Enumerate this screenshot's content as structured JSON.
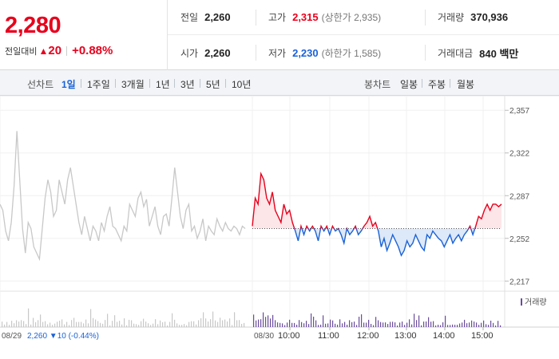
{
  "header": {
    "current_price": "2,280",
    "change_label": "전일대비",
    "change_arrow": "▲",
    "change_value": "20",
    "change_pct": "+0.88%",
    "prev_close": {
      "label": "전일",
      "value": "2,260"
    },
    "open": {
      "label": "시가",
      "value": "2,260"
    },
    "high": {
      "label": "고가",
      "value": "2,315",
      "limit": "(상한가 2,935)"
    },
    "low": {
      "label": "저가",
      "value": "2,230",
      "limit": "(하한가 1,585)"
    },
    "volume": {
      "label": "거래량",
      "value": "370,936"
    },
    "amount": {
      "label": "거래대금",
      "value": "840 백만"
    }
  },
  "tabs": {
    "line_label": "선차트",
    "line_tabs": [
      "1일",
      "1주일",
      "3개월",
      "1년",
      "3년",
      "5년",
      "10년"
    ],
    "selected": "1일",
    "candle_label": "봉차트",
    "candle_tabs": [
      "일봉",
      "주봉",
      "월봉"
    ]
  },
  "colors": {
    "up": "#e8001c",
    "down": "#1a62d6",
    "prev_day": "#c8c8c8",
    "volume": "#6a4c9c"
  },
  "chart_data": {
    "type": "line",
    "ylim": [
      2210,
      2365
    ],
    "y_ticks": [
      "2,357",
      "2,322",
      "2,287",
      "2,252",
      "2,217"
    ],
    "baseline": 2260,
    "prev_day": {
      "date": "08/29",
      "summary": {
        "price": "2,260",
        "arrow": "▼",
        "change": "10",
        "pct": "(-0.44%)"
      },
      "values": [
        2280,
        2275,
        2258,
        2250,
        2265,
        2295,
        2340,
        2300,
        2260,
        2240,
        2265,
        2260,
        2245,
        2240,
        2235,
        2260,
        2285,
        2300,
        2290,
        2270,
        2275,
        2300,
        2290,
        2280,
        2300,
        2310,
        2295,
        2280,
        2265,
        2255,
        2270,
        2260,
        2250,
        2262,
        2258,
        2250,
        2265,
        2258,
        2270,
        2278,
        2262,
        2260,
        2255,
        2250,
        2262,
        2258,
        2280,
        2275,
        2270,
        2285,
        2290,
        2278,
        2284,
        2262,
        2270,
        2278,
        2262,
        2255,
        2270,
        2272,
        2262,
        2285,
        2310,
        2290,
        2270,
        2260,
        2275,
        2280,
        2258,
        2262,
        2252,
        2258,
        2268,
        2250,
        2262,
        2258,
        2255,
        2268,
        2262,
        2258,
        2265,
        2260,
        2258,
        2262,
        2260,
        2255,
        2262,
        2260
      ]
    },
    "today": {
      "date": "08/30",
      "x_ticks": [
        "10:00",
        "11:00",
        "12:00",
        "13:00",
        "14:00",
        "15:00"
      ],
      "values": [
        2262,
        2285,
        2280,
        2305,
        2300,
        2285,
        2280,
        2290,
        2275,
        2270,
        2265,
        2280,
        2272,
        2275,
        2265,
        2258,
        2250,
        2262,
        2255,
        2262,
        2258,
        2262,
        2258,
        2250,
        2262,
        2258,
        2262,
        2255,
        2262,
        2258,
        2260,
        2255,
        2248,
        2260,
        2255,
        2258,
        2262,
        2255,
        2258,
        2262,
        2265,
        2270,
        2262,
        2265,
        2258,
        2245,
        2252,
        2242,
        2248,
        2255,
        2250,
        2245,
        2238,
        2242,
        2250,
        2245,
        2248,
        2255,
        2250,
        2245,
        2242,
        2255,
        2252,
        2258,
        2255,
        2252,
        2250,
        2245,
        2250,
        2255,
        2248,
        2252,
        2255,
        2250,
        2255,
        2258,
        2262,
        2255,
        2262,
        2270,
        2268,
        2275,
        2280,
        2275,
        2280,
        2280,
        2278,
        2280
      ]
    },
    "volume_label": "거래량"
  }
}
